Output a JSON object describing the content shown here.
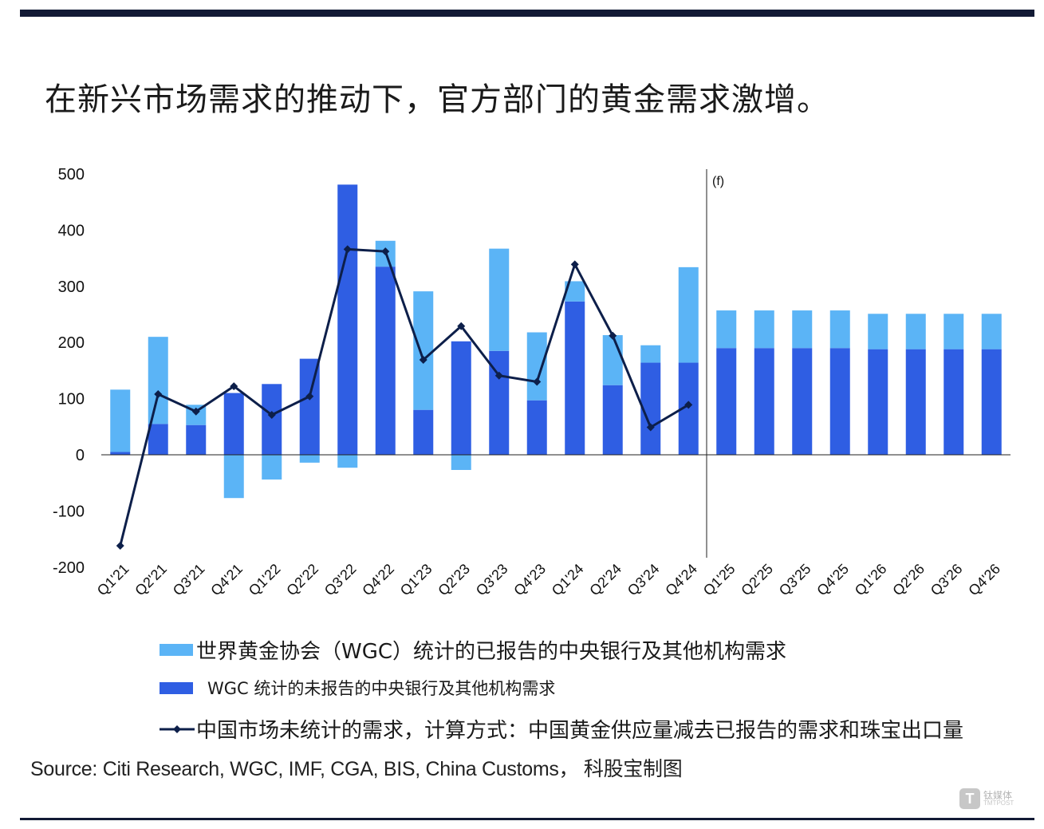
{
  "title": "在新兴市场需求的推动下，官方部门的黄金需求激增。",
  "colors": {
    "reported": "#5bb4f6",
    "unreported": "#2f5ee3",
    "line": "#0d1f4a",
    "rule": "#121a35"
  },
  "chart_data": {
    "type": "bar",
    "stacked": true,
    "categories": [
      "Q1'21",
      "Q2'21",
      "Q3'21",
      "Q4'21",
      "Q1'22",
      "Q2'22",
      "Q3'22",
      "Q4'22",
      "Q1'23",
      "Q2'23",
      "Q3'23",
      "Q4'23",
      "Q1'24",
      "Q2'24",
      "Q3'24",
      "Q4'24",
      "Q1'25",
      "Q2'25",
      "Q3'25",
      "Q4'25",
      "Q1'26",
      "Q2'26",
      "Q3'26",
      "Q4'26"
    ],
    "series": [
      {
        "name": "WGC 统计的未报告的中央银行及其他机构需求",
        "values": [
          5,
          55,
          53,
          110,
          126,
          171,
          481,
          335,
          80,
          202,
          185,
          97,
          273,
          124,
          164,
          164,
          190,
          190,
          190,
          190,
          188,
          188,
          188,
          188
        ]
      },
      {
        "name": "世界黄金协会（WGC）统计的已报告的中央银行及其他机构需求",
        "values": [
          111,
          155,
          36,
          -77,
          -44,
          -14,
          -23,
          46,
          211,
          -27,
          182,
          121,
          36,
          89,
          31,
          170,
          67,
          67,
          67,
          67,
          63,
          63,
          63,
          63
        ]
      }
    ],
    "line_series": {
      "name": "中国市场未统计的需求，计算方式：中国黄金供应量减去已报告的需求和珠宝出口量",
      "values": [
        -162,
        108,
        77,
        122,
        71,
        104,
        366,
        362,
        169,
        229,
        141,
        130,
        339,
        212,
        49,
        89
      ]
    },
    "yticks": [
      500,
      400,
      300,
      200,
      100,
      0,
      -100,
      -200
    ],
    "ylim": [
      -200,
      500
    ],
    "forecast_label": "(f)",
    "forecast_start": "Q1'25"
  },
  "legend": {
    "reported": "世界黄金协会（WGC）统计的已报告的中央银行及其他机构需求",
    "unreported": "WGC 统计的未报告的中央银行及其他机构需求",
    "line": "中国市场未统计的需求，计算方式：中国黄金供应量减去已报告的需求和珠宝出口量"
  },
  "source": "Source: Citi Research, WGC, IMF, CGA, BIS, China Customs， 科股宝制图",
  "watermark": {
    "cn": "钛媒体",
    "en": "TMTPOST",
    "mark": "T"
  }
}
